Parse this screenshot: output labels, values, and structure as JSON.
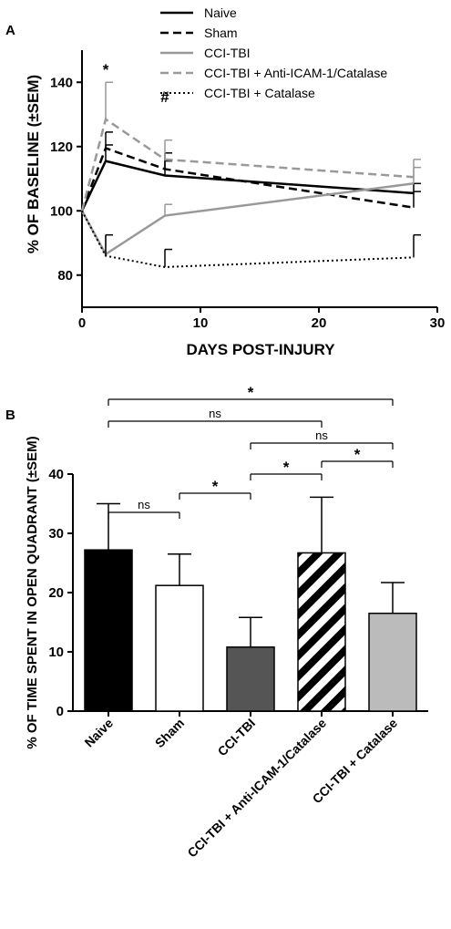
{
  "chart_data": [
    {
      "panel": "A",
      "type": "line",
      "xlabel": "DAYS POST-INJURY",
      "ylabel": "% OF BASELINE (±SEM)",
      "xlim": [
        0,
        30
      ],
      "ylim": [
        70,
        150
      ],
      "xticks": [
        0,
        10,
        20,
        30
      ],
      "yticks": [
        80,
        100,
        120,
        140
      ],
      "grid": false,
      "legend_position": "top",
      "series": [
        {
          "name": "Naive",
          "style": "solid",
          "color": "#000000",
          "x": [
            0,
            2,
            7,
            28
          ],
          "y": [
            100,
            115.5,
            111,
            105.5
          ],
          "err": [
            0,
            5,
            4.5,
            3
          ]
        },
        {
          "name": "Sham",
          "style": "dashed",
          "color": "#000000",
          "x": [
            0,
            2,
            7,
            28
          ],
          "y": [
            100,
            119.5,
            113,
            101
          ],
          "err": [
            0,
            5,
            5,
            5
          ]
        },
        {
          "name": "CCI-TBI",
          "style": "solid",
          "color": "#999999",
          "x": [
            0,
            2,
            7,
            28
          ],
          "y": [
            100,
            86.5,
            98.5,
            108.5
          ],
          "err": [
            0,
            6,
            3.5,
            5
          ]
        },
        {
          "name": "CCI-TBI + Anti-ICAM-1/Catalase",
          "style": "dashed",
          "color": "#999999",
          "x": [
            0,
            2,
            7,
            28
          ],
          "y": [
            100,
            128.5,
            116,
            110.5
          ],
          "err": [
            0,
            11.5,
            6,
            5.5
          ]
        },
        {
          "name": "CCI-TBI + Catalase",
          "style": "dotted",
          "color": "#000000",
          "x": [
            0,
            2,
            7,
            28
          ],
          "y": [
            100,
            86,
            82.5,
            85.5
          ],
          "err": [
            0,
            6.5,
            5.5,
            7
          ]
        }
      ],
      "annotations": [
        {
          "text": "*",
          "x": 2
        },
        {
          "text": "#",
          "x": 7
        }
      ]
    },
    {
      "panel": "B",
      "type": "bar",
      "ylabel": "% OF TIME SPENT IN OPEN QUADRANT (±SEM)",
      "ylim": [
        0,
        40
      ],
      "yticks": [
        0,
        10,
        20,
        30,
        40
      ],
      "categories": [
        "Naive",
        "Sham",
        "CCI-TBI",
        "CCI-TBI + Anti-ICAM-1/Catalase",
        "CCI-TBI + Catalase"
      ],
      "values": [
        27.2,
        21.2,
        10.8,
        26.7,
        16.5
      ],
      "errors": [
        7.8,
        5.3,
        5,
        9.4,
        5.2
      ],
      "fills": [
        "#000000",
        "#ffffff",
        "#555555",
        "hatch",
        "#bbbbbb"
      ],
      "significance": [
        {
          "from": 0,
          "to": 1,
          "label": "ns"
        },
        {
          "from": 1,
          "to": 2,
          "label": "*"
        },
        {
          "from": 2,
          "to": 3,
          "label": "*"
        },
        {
          "from": 3,
          "to": 4,
          "label": "*"
        },
        {
          "from": 2,
          "to": 4,
          "label": "ns"
        },
        {
          "from": 0,
          "to": 3,
          "label": "ns"
        },
        {
          "from": 0,
          "to": 4,
          "label": "*"
        }
      ]
    }
  ]
}
